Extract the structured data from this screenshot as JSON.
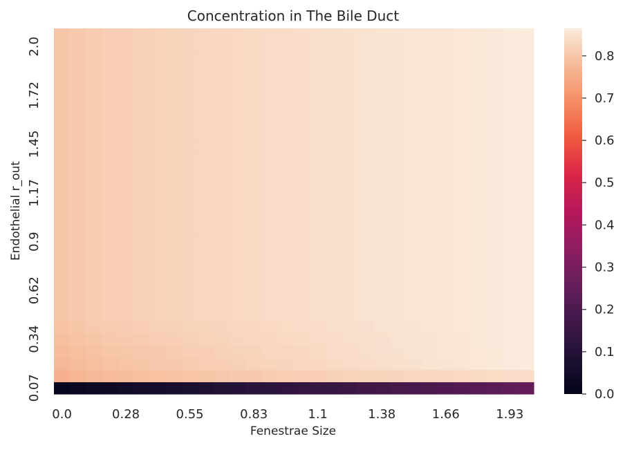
{
  "chart_data": {
    "type": "heatmap",
    "title": "Concentration in The Bile Duct",
    "xlabel": "Fenestrae Size",
    "ylabel": "Endothelial r_out",
    "x_tick_labels": [
      "0.0",
      "0.28",
      "0.55",
      "0.83",
      "1.1",
      "1.38",
      "1.66",
      "1.93"
    ],
    "y_tick_labels": [
      "0.07",
      "0.34",
      "0.62",
      "0.9",
      "1.17",
      "1.45",
      "1.72",
      "2.0"
    ],
    "grid_cols": 30,
    "grid_rows": 30,
    "x_range": [
      0.0,
      2.0
    ],
    "y_range": [
      0.0,
      2.0
    ],
    "colorbar": {
      "ticks": [
        "0.0",
        "0.1",
        "0.2",
        "0.3",
        "0.4",
        "0.5",
        "0.6",
        "0.7",
        "0.8"
      ],
      "vmin": 0.0,
      "vmax": 0.865,
      "colormap": "rocket"
    },
    "value_model": {
      "description_rows": "row 0 at y=0.0 (bottom) ranges 0.01 to 0.25 across x; row 1 ~0.76-0.84; rows above climb from ~0.80 at left to ~0.86 at right",
      "bottom_row": {
        "x_start_value": 0.01,
        "x_end_value": 0.25
      },
      "second_row": {
        "x_start_value": 0.76,
        "x_end_value": 0.84
      },
      "upper_rows": {
        "x_start_value": 0.8,
        "x_end_value": 0.865
      }
    }
  }
}
